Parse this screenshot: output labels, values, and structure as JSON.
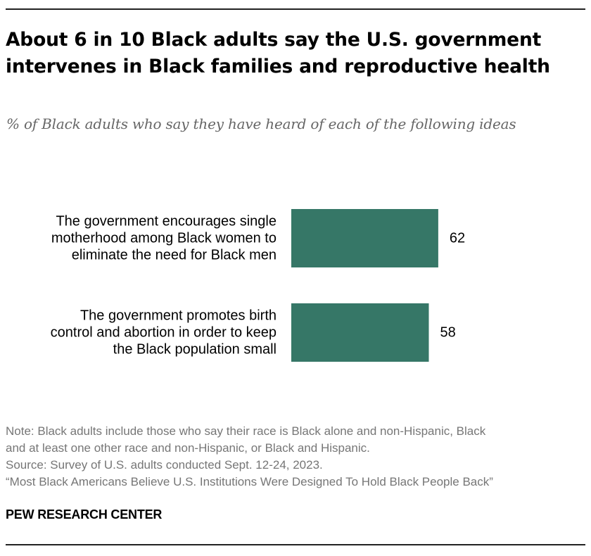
{
  "title_lines": [
    "About 6 in 10 Black adults say the U.S. government",
    "intervenes in Black families and reproductive health"
  ],
  "subtitle": "% of Black adults who say they have heard of each of the following ideas",
  "chart_data": {
    "type": "bar",
    "orientation": "horizontal",
    "title": "About 6 in 10 Black adults say the U.S. government intervenes in Black families and reproductive health",
    "subtitle": "% of Black adults who say they have heard of each of the following ideas",
    "categories": [
      [
        "The government encourages single",
        "motherhood among Black women to",
        "eliminate the need for Black men"
      ],
      [
        "The government promotes birth",
        "control and abortion in order to keep",
        "the Black population small"
      ]
    ],
    "values": [
      62,
      58
    ],
    "xlim": [
      0,
      100
    ],
    "xlabel": "",
    "ylabel": "",
    "grid": false,
    "bar_color": "#367767"
  },
  "notes": {
    "note_line1": "Note: Black adults include those who say their race is Black alone and non-Hispanic, Black",
    "note_line2": "and at least one other race and non-Hispanic, or Black and Hispanic.",
    "source": "Source: Survey of U.S. adults conducted Sept. 12-24, 2023.",
    "report": "“Most Black Americans Believe U.S. Institutions Were Designed To Hold Black People Back”"
  },
  "brand": "PEW RESEARCH CENTER"
}
